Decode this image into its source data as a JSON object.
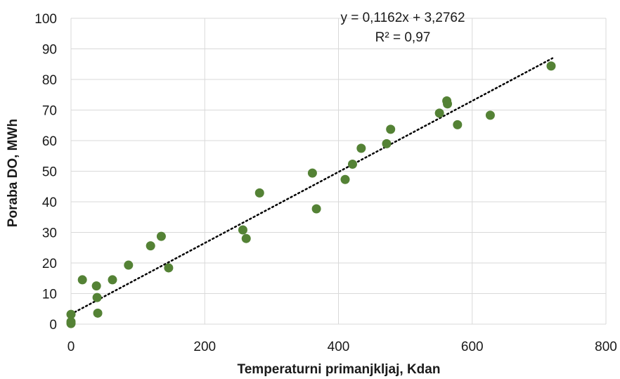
{
  "chart_data": {
    "type": "scatter",
    "xlabel": "Temperaturni primanjkljaj, Kdan",
    "ylabel": "Poraba DO, MWh",
    "xlim": [
      0,
      800
    ],
    "ylim": [
      0,
      100
    ],
    "x_ticks": [
      0,
      200,
      400,
      600,
      800
    ],
    "x_tick_labels": [
      "0",
      "200",
      "400",
      "600",
      "800"
    ],
    "y_ticks": [
      0,
      10,
      20,
      30,
      40,
      50,
      60,
      70,
      80,
      90,
      100
    ],
    "y_tick_labels": [
      "0",
      "10",
      "20",
      "30",
      "40",
      "50",
      "60",
      "70",
      "80",
      "90",
      "100"
    ],
    "grid": true,
    "marker_color": "#548235",
    "trendline_color": "#000000",
    "trendline": {
      "type": "linear",
      "slope": 0.1162,
      "intercept": 3.2762,
      "x_range": [
        0,
        720
      ],
      "style": "dotted"
    },
    "annotations": {
      "equation": "y = 0,1162x + 3,2762",
      "r_squared": "R² = 0,97"
    },
    "series": [
      {
        "points": [
          [
            0,
            0.2
          ],
          [
            0,
            0.8
          ],
          [
            0,
            3.2
          ],
          [
            17,
            14.5
          ],
          [
            38,
            12.5
          ],
          [
            39,
            8.7
          ],
          [
            40,
            3.6
          ],
          [
            62,
            14.5
          ],
          [
            86,
            19.3
          ],
          [
            119,
            25.6
          ],
          [
            135,
            28.7
          ],
          [
            146,
            18.4
          ],
          [
            257,
            30.8
          ],
          [
            262,
            28
          ],
          [
            282,
            42.9
          ],
          [
            361,
            49.4
          ],
          [
            367,
            37.7
          ],
          [
            410,
            47.3
          ],
          [
            421,
            52.3
          ],
          [
            434,
            57.5
          ],
          [
            472,
            59
          ],
          [
            478,
            63.7
          ],
          [
            551,
            69
          ],
          [
            562,
            73
          ],
          [
            563,
            72
          ],
          [
            578,
            65.2
          ],
          [
            627,
            68.3
          ],
          [
            718,
            84.4
          ]
        ]
      }
    ]
  }
}
